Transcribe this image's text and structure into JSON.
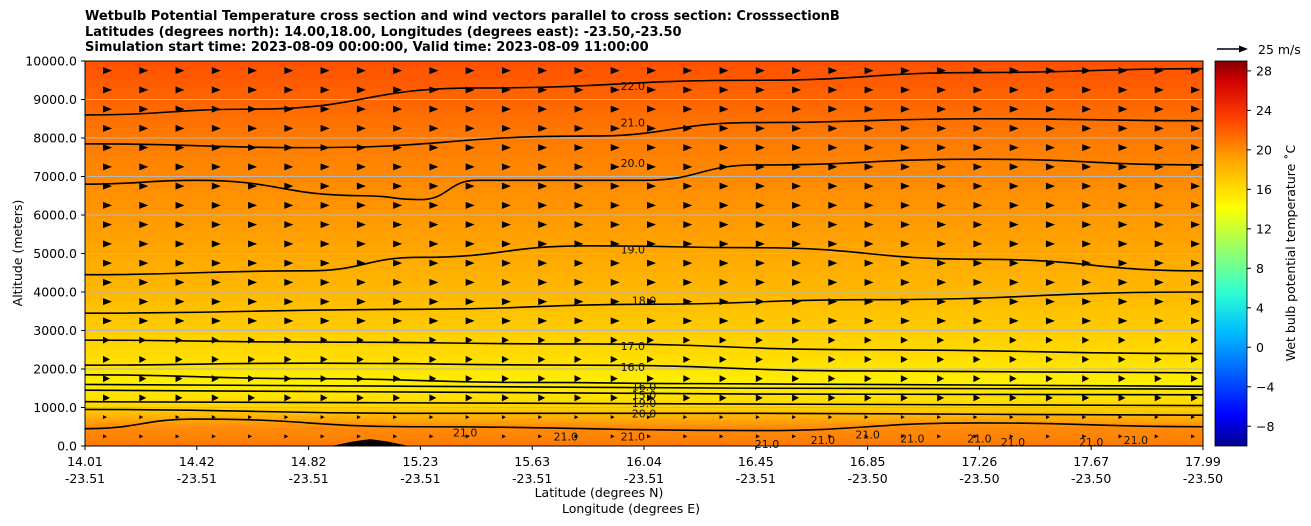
{
  "title_lines": [
    "Wetbulb Potential Temperature cross section and wind vectors parallel to cross section: CrosssectionB",
    "Latitudes (degrees north): 14.00,18.00, Longitudes (degrees east): -23.50,-23.50",
    "Simulation start time: 2023-08-09 00:00:00, Valid time: 2023-08-09 11:00:00"
  ],
  "chart_data": {
    "type": "contour-cross-section",
    "ylabel": "Altitude (meters)",
    "xlabel_lat": "Latitude (degrees N)",
    "xlabel_lon": "Longitude (degrees E)",
    "ylim": [
      0,
      10000
    ],
    "yticks": [
      "0.0",
      "1000.0",
      "2000.0",
      "3000.0",
      "4000.0",
      "5000.0",
      "6000.0",
      "7000.0",
      "8000.0",
      "9000.0",
      "10000.0"
    ],
    "ytick_values": [
      0,
      1000,
      2000,
      3000,
      4000,
      5000,
      6000,
      7000,
      8000,
      9000,
      10000
    ],
    "xtick_values": [
      0,
      0.1,
      0.2,
      0.3,
      0.4,
      0.5,
      0.6,
      0.7,
      0.8,
      0.9,
      1.0
    ],
    "xticks_lat": [
      "14.01",
      "14.42",
      "14.82",
      "15.23",
      "15.63",
      "16.04",
      "16.45",
      "16.85",
      "17.26",
      "17.67",
      "17.99"
    ],
    "xticks_lon": [
      "-23.51",
      "-23.51",
      "-23.51",
      "-23.51",
      "-23.51",
      "-23.51",
      "-23.51",
      "-23.50",
      "-23.50",
      "-23.50",
      "-23.50"
    ],
    "colorbar": {
      "label": "Wet bulb potential temperature ˚C",
      "range": [
        -10,
        29
      ],
      "ticks": [
        -8,
        -4,
        0,
        4,
        8,
        12,
        16,
        20,
        24,
        28
      ],
      "tick_labels": [
        "−8",
        "−4",
        "0",
        "4",
        "8",
        "12",
        "16",
        "20",
        "24",
        "28"
      ]
    },
    "vector_key": "25 m/s",
    "contours": [
      {
        "level": "14.0",
        "points": [
          [
            0,
            1600
          ],
          [
            0.3,
            1550
          ],
          [
            0.6,
            1500
          ],
          [
            1.0,
            1480
          ]
        ]
      },
      {
        "level": "15.0",
        "points": [
          [
            0,
            1450
          ],
          [
            0.3,
            1400
          ],
          [
            0.6,
            1350
          ],
          [
            1.0,
            1330
          ]
        ]
      },
      {
        "level": "16.0",
        "points": [
          [
            0,
            1850
          ],
          [
            0.2,
            1750
          ],
          [
            0.4,
            1650
          ],
          [
            0.55,
            1620
          ],
          [
            0.7,
            1600
          ],
          [
            1.0,
            1550
          ]
        ]
      },
      {
        "level": "16.0",
        "points": [
          [
            0,
            2100
          ],
          [
            0.2,
            2150
          ],
          [
            0.45,
            2100
          ],
          [
            0.7,
            1950
          ],
          [
            1.0,
            1900
          ]
        ]
      },
      {
        "level": "17.0",
        "points": [
          [
            0,
            2750
          ],
          [
            0.2,
            2700
          ],
          [
            0.45,
            2650
          ],
          [
            0.7,
            2500
          ],
          [
            1.0,
            2400
          ]
        ]
      },
      {
        "level": "18.0",
        "points": [
          [
            0,
            3450
          ],
          [
            0.3,
            3550
          ],
          [
            0.5,
            3680
          ],
          [
            0.7,
            3800
          ],
          [
            1.0,
            4000
          ]
        ]
      },
      {
        "level": "19.0",
        "points": [
          [
            0,
            4450
          ],
          [
            0.2,
            4550
          ],
          [
            0.3,
            4900
          ],
          [
            0.45,
            5200
          ],
          [
            0.6,
            5150
          ],
          [
            0.8,
            4850
          ],
          [
            1.0,
            4550
          ]
        ]
      },
      {
        "level": "20.0",
        "points": [
          [
            0,
            6800
          ],
          [
            0.1,
            6900
          ],
          [
            0.25,
            6500
          ],
          [
            0.3,
            6400
          ],
          [
            0.35,
            6900
          ],
          [
            0.5,
            6900
          ],
          [
            0.6,
            7300
          ],
          [
            0.8,
            7450
          ],
          [
            1.0,
            7300
          ]
        ]
      },
      {
        "level": "21.0",
        "points": [
          [
            0,
            7850
          ],
          [
            0.2,
            7750
          ],
          [
            0.45,
            8050
          ],
          [
            0.6,
            8400
          ],
          [
            0.8,
            8500
          ],
          [
            1.0,
            8450
          ]
        ]
      },
      {
        "level": "22.0",
        "points": [
          [
            0,
            8600
          ],
          [
            0.15,
            8750
          ],
          [
            0.35,
            9300
          ],
          [
            0.6,
            9500
          ],
          [
            0.8,
            9700
          ],
          [
            1.0,
            9800
          ]
        ]
      },
      {
        "level": "19.0",
        "points": [
          [
            0,
            1150
          ],
          [
            0.5,
            1100
          ],
          [
            1.0,
            1050
          ]
        ]
      },
      {
        "level": "20.0",
        "points": [
          [
            0,
            950
          ],
          [
            0.3,
            850
          ],
          [
            0.6,
            850
          ],
          [
            1.0,
            800
          ]
        ]
      },
      {
        "level": "21.0",
        "points": [
          [
            0,
            450
          ],
          [
            0.1,
            700
          ],
          [
            0.3,
            500
          ],
          [
            0.6,
            400
          ],
          [
            0.8,
            600
          ],
          [
            1.0,
            500
          ]
        ]
      }
    ],
    "contour_labels": [
      {
        "text": "22.0",
        "x": 0.49,
        "y": 9350
      },
      {
        "text": "21.0",
        "x": 0.49,
        "y": 8400
      },
      {
        "text": "20.0",
        "x": 0.49,
        "y": 7350
      },
      {
        "text": "19.0",
        "x": 0.49,
        "y": 5100
      },
      {
        "text": "18.0",
        "x": 0.5,
        "y": 3780
      },
      {
        "text": "17.0",
        "x": 0.49,
        "y": 2600
      },
      {
        "text": "16.0",
        "x": 0.49,
        "y": 2050
      },
      {
        "text": "16.0",
        "x": 0.5,
        "y": 1550
      },
      {
        "text": "15.0",
        "x": 0.5,
        "y": 1320
      },
      {
        "text": "19.0",
        "x": 0.5,
        "y": 1120
      },
      {
        "text": "20.0",
        "x": 0.5,
        "y": 850
      },
      {
        "text": "21.0",
        "x": 0.34,
        "y": 350
      },
      {
        "text": "21.0",
        "x": 0.43,
        "y": 250
      },
      {
        "text": "21.0",
        "x": 0.49,
        "y": 250
      },
      {
        "text": "21.0",
        "x": 0.61,
        "y": 50
      },
      {
        "text": "21.0",
        "x": 0.66,
        "y": 150
      },
      {
        "text": "21.0",
        "x": 0.7,
        "y": 300
      },
      {
        "text": "21.0",
        "x": 0.74,
        "y": 200
      },
      {
        "text": "21.0",
        "x": 0.8,
        "y": 200
      },
      {
        "text": "21.0",
        "x": 0.83,
        "y": 100
      },
      {
        "text": "21.0",
        "x": 0.9,
        "y": 100
      },
      {
        "text": "21.0",
        "x": 0.94,
        "y": 150
      }
    ],
    "terrain": [
      [
        0.22,
        0
      ],
      [
        0.24,
        120
      ],
      [
        0.255,
        180
      ],
      [
        0.27,
        120
      ],
      [
        0.29,
        0
      ]
    ]
  }
}
